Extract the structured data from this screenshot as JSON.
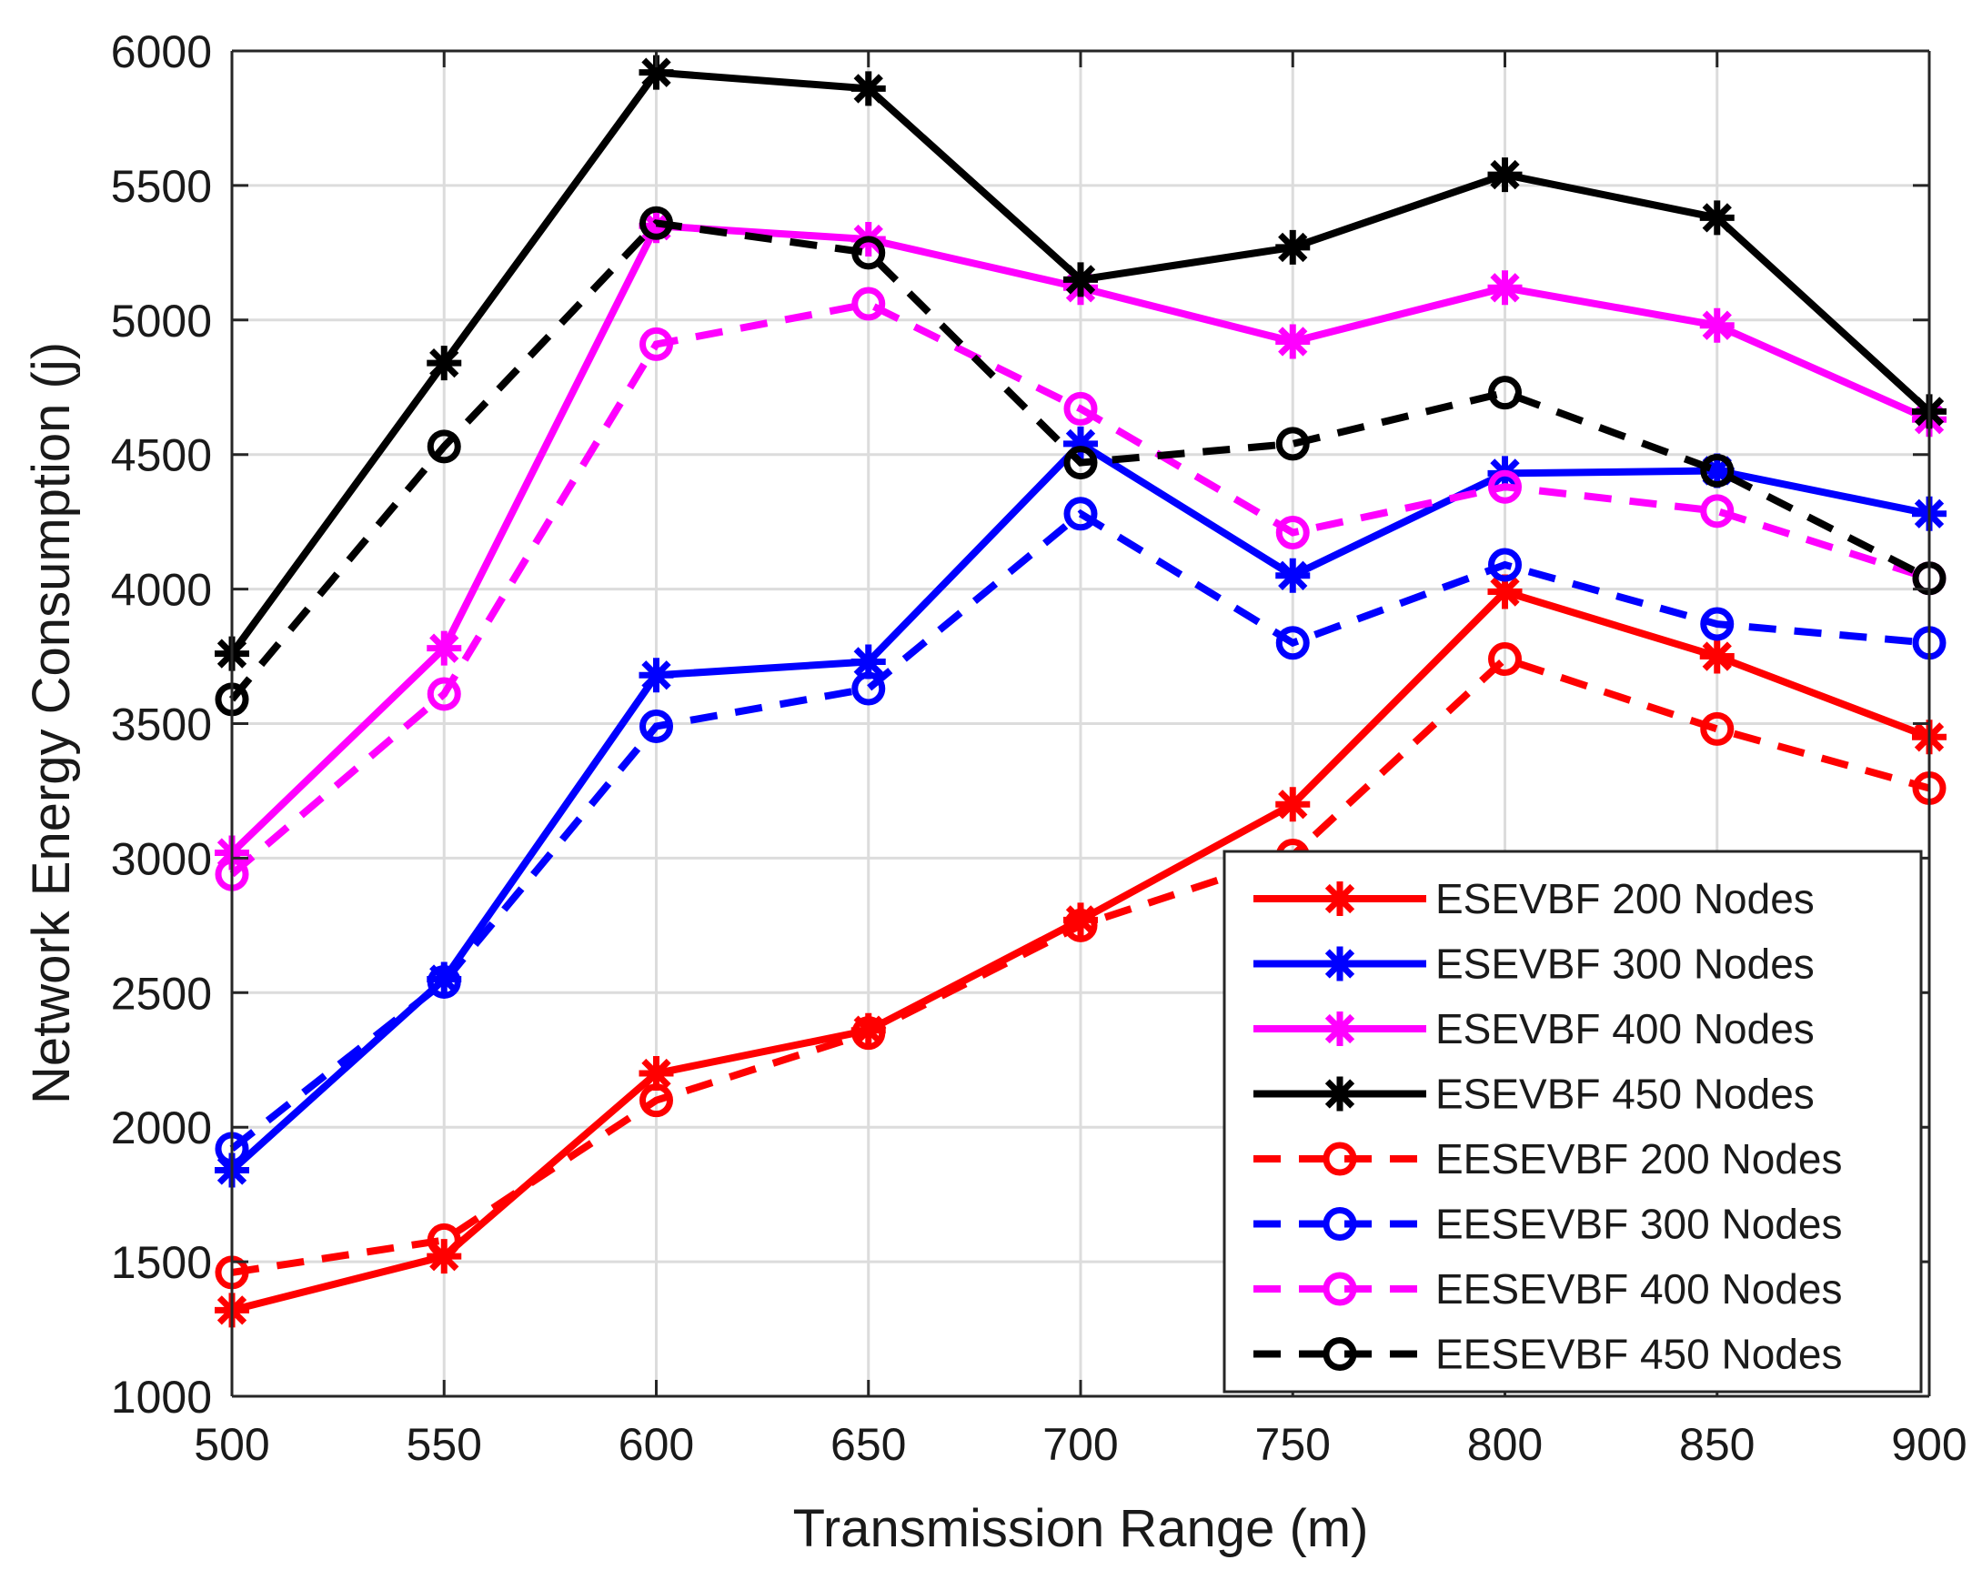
{
  "chart_data": {
    "type": "line",
    "title": "",
    "xlabel": "Transmission Range (m)",
    "ylabel": "Network Energy Consumption (j)",
    "x": [
      500,
      550,
      600,
      650,
      700,
      750,
      800,
      850,
      900
    ],
    "xticks": [
      "500",
      "550",
      "600",
      "650",
      "700",
      "750",
      "800",
      "850",
      "900"
    ],
    "yticks": [
      "1000",
      "1500",
      "2000",
      "2500",
      "3000",
      "3500",
      "4000",
      "4500",
      "5000",
      "5500",
      "6000"
    ],
    "xlim": [
      500,
      900
    ],
    "ylim": [
      1000,
      6000
    ],
    "grid": true,
    "legend_position": "bottom-right",
    "series": [
      {
        "name": "ESEVBF 200 Nodes",
        "color": "#ff0000",
        "dash": "solid",
        "marker": "asterisk",
        "values": [
          1320,
          1520,
          2200,
          2360,
          2770,
          3200,
          3990,
          3750,
          3450
        ]
      },
      {
        "name": "ESEVBF 300 Nodes",
        "color": "#0000ff",
        "dash": "solid",
        "marker": "asterisk",
        "values": [
          1840,
          2550,
          3680,
          3730,
          4540,
          4050,
          4430,
          4440,
          4280
        ]
      },
      {
        "name": "ESEVBF 400 Nodes",
        "color": "#ff00ff",
        "dash": "solid",
        "marker": "asterisk",
        "values": [
          3020,
          3780,
          5350,
          5300,
          5120,
          4920,
          5120,
          4980,
          4630
        ]
      },
      {
        "name": "ESEVBF 450 Nodes",
        "color": "#000000",
        "dash": "solid",
        "marker": "asterisk",
        "values": [
          3760,
          4840,
          5920,
          5860,
          5150,
          5270,
          5540,
          5380,
          4660
        ]
      },
      {
        "name": "EESEVBF  200 Nodes",
        "color": "#ff0000",
        "dash": "dashed",
        "marker": "circle",
        "values": [
          1460,
          1580,
          2100,
          2350,
          2750,
          3010,
          3740,
          3480,
          3260
        ]
      },
      {
        "name": "EESEVBF 300 Nodes",
        "color": "#0000ff",
        "dash": "dashed",
        "marker": "circle",
        "values": [
          1920,
          2540,
          3490,
          3630,
          4280,
          3800,
          4090,
          3870,
          3800
        ]
      },
      {
        "name": "EESEVBF  400 Nodes",
        "color": "#ff00ff",
        "dash": "dashed",
        "marker": "circle",
        "values": [
          2940,
          3610,
          4910,
          5060,
          4670,
          4210,
          4380,
          4290,
          4040
        ]
      },
      {
        "name": "EESEVBF  450 Nodes",
        "color": "#000000",
        "dash": "dashed",
        "marker": "circle",
        "values": [
          3590,
          4530,
          5360,
          5250,
          4470,
          4540,
          4730,
          4440,
          4040
        ]
      }
    ]
  }
}
